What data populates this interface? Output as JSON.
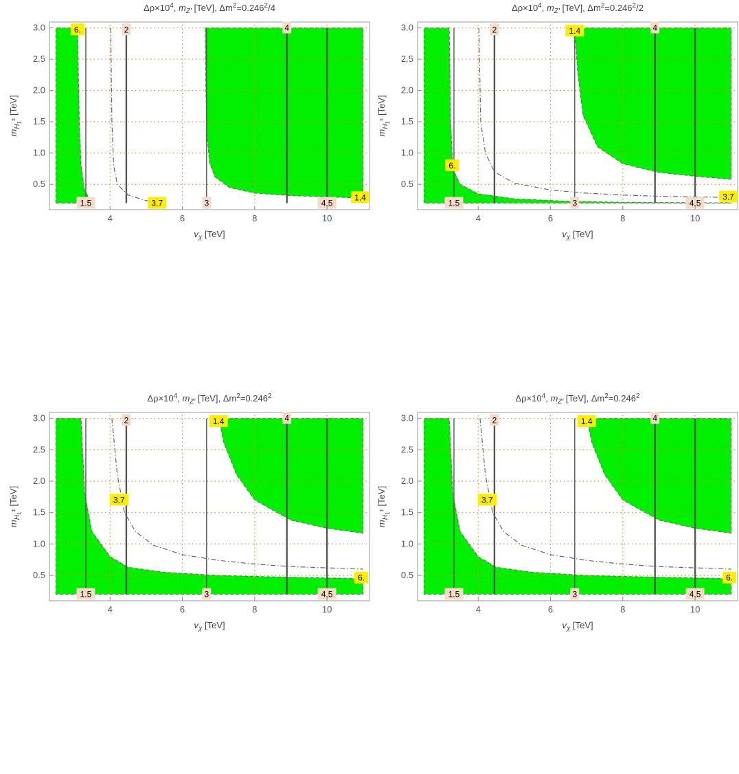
{
  "chart_data": [
    {
      "type": "contour",
      "title": "Δρ×10⁴, m_Z′ [TeV], Δm²=0.246²/4",
      "title_parts": {
        "a": "Δρ×10",
        "a_sup": "4",
        "b": ", ",
        "b_ital": "m",
        "b_sub": "Z′",
        "c": " [TeV], Δm",
        "c_sup": "2",
        "d": "=0.246",
        "d_sup": "2",
        "e": "/4"
      },
      "xlabel": "v_χ [TeV]",
      "ylabel": "m_H1± [TeV]",
      "xlim": [
        2.4,
        11.1
      ],
      "ylim": [
        0.14,
        3.05
      ],
      "xticks": [
        "4",
        "6",
        "8",
        "10"
      ],
      "yticks": [
        "0.5",
        "1.0",
        "1.5",
        "2.0",
        "2.5",
        "3.0"
      ],
      "vertical_contours": [
        {
          "x": 3.33,
          "label": "1.5",
          "y0": 0.2,
          "y1": 3.0,
          "label_y": 0.2
        },
        {
          "x": 4.45,
          "label": "2",
          "y0": 0.2,
          "y1": 3.0,
          "label_y": 2.97
        },
        {
          "x": 6.67,
          "label": "3",
          "y0": 0.2,
          "y1": 3.0,
          "label_y": 0.2
        },
        {
          "x": 8.89,
          "label": "4",
          "y0": 0.2,
          "y1": 3.0,
          "label_y": 3.0
        },
        {
          "x": 10.0,
          "label": "4.5",
          "y0": 0.2,
          "y1": 3.0,
          "label_y": 0.2
        }
      ],
      "green_regions": [
        {
          "points": [
            [
              2.5,
              0.2
            ],
            [
              2.5,
              3.0
            ],
            [
              3.1,
              3.0
            ],
            [
              3.15,
              1.5
            ],
            [
              3.2,
              0.8
            ],
            [
              3.3,
              0.4
            ],
            [
              3.5,
              0.2
            ]
          ]
        },
        {
          "points": [
            [
              6.63,
              3.0
            ],
            [
              11.0,
              3.0
            ],
            [
              11.0,
              0.28
            ],
            [
              10.0,
              0.3
            ],
            [
              9.0,
              0.32
            ],
            [
              8.0,
              0.36
            ],
            [
              7.3,
              0.45
            ],
            [
              6.9,
              0.62
            ],
            [
              6.75,
              0.85
            ],
            [
              6.68,
              1.3
            ],
            [
              6.65,
              2.0
            ]
          ]
        }
      ],
      "dashdot_curves": [
        {
          "label": "3.7",
          "label_x": 5.3,
          "label_y": 0.2,
          "points": [
            [
              4.02,
              3.0
            ],
            [
              4.05,
              1.5
            ],
            [
              4.1,
              0.8
            ],
            [
              4.2,
              0.5
            ],
            [
              4.5,
              0.33
            ],
            [
              5.0,
              0.24
            ],
            [
              5.5,
              0.2
            ]
          ]
        }
      ],
      "boundary_labels": [
        {
          "text": "6.",
          "x": 3.1,
          "y": 2.97
        },
        {
          "text": "1.4",
          "x": 10.95,
          "y": 0.29
        }
      ]
    },
    {
      "type": "contour",
      "title": "Δρ×10⁴, m_Z′ [TeV], Δm²=0.246²/2",
      "title_parts": {
        "a": "Δρ×10",
        "a_sup": "4",
        "b": ", ",
        "b_ital": "m",
        "b_sub": "Z′",
        "c": " [TeV], Δm",
        "c_sup": "2",
        "d": "=0.246",
        "d_sup": "2",
        "e": "/2"
      },
      "xlabel": "v_χ [TeV]",
      "ylabel": "m_H1± [TeV]",
      "xlim": [
        2.4,
        11.1
      ],
      "ylim": [
        0.14,
        3.05
      ],
      "xticks": [
        "4",
        "6",
        "8",
        "10"
      ],
      "yticks": [
        "0.5",
        "1.0",
        "1.5",
        "2.0",
        "2.5",
        "3.0"
      ],
      "vertical_contours": [
        {
          "x": 3.33,
          "label": "1.5",
          "y0": 0.2,
          "y1": 3.0,
          "label_y": 0.2
        },
        {
          "x": 4.45,
          "label": "2",
          "y0": 0.2,
          "y1": 3.0,
          "label_y": 2.97
        },
        {
          "x": 6.67,
          "label": "3",
          "y0": 0.2,
          "y1": 3.0,
          "label_y": 0.2
        },
        {
          "x": 8.89,
          "label": "4",
          "y0": 0.2,
          "y1": 3.0,
          "label_y": 3.0
        },
        {
          "x": 10.0,
          "label": "4.5",
          "y0": 0.2,
          "y1": 3.0,
          "label_y": 0.2
        }
      ],
      "green_regions": [
        {
          "points": [
            [
              2.5,
              0.2
            ],
            [
              2.5,
              3.0
            ],
            [
              3.2,
              3.0
            ],
            [
              3.24,
              1.5
            ],
            [
              3.3,
              0.75
            ],
            [
              3.5,
              0.5
            ],
            [
              4.0,
              0.35
            ],
            [
              5.0,
              0.27
            ],
            [
              6.5,
              0.23
            ],
            [
              8.0,
              0.215
            ],
            [
              11.0,
              0.205
            ],
            [
              11.0,
              0.2
            ]
          ]
        },
        {
          "points": [
            [
              6.67,
              3.0
            ],
            [
              11.0,
              3.0
            ],
            [
              11.0,
              0.58
            ],
            [
              10.0,
              0.63
            ],
            [
              9.0,
              0.69
            ],
            [
              8.0,
              0.83
            ],
            [
              7.3,
              1.1
            ],
            [
              6.9,
              1.6
            ],
            [
              6.75,
              2.3
            ],
            [
              6.68,
              2.9
            ]
          ]
        }
      ],
      "dashdot_curves": [
        {
          "label": "3.7",
          "label_x": 10.95,
          "label_y": 0.3,
          "points": [
            [
              4.02,
              3.0
            ],
            [
              4.07,
              1.5
            ],
            [
              4.2,
              1.0
            ],
            [
              4.45,
              0.7
            ],
            [
              5.0,
              0.52
            ],
            [
              6.0,
              0.41
            ],
            [
              7.0,
              0.36
            ],
            [
              8.0,
              0.33
            ],
            [
              9.0,
              0.31
            ],
            [
              10.0,
              0.3
            ],
            [
              11.0,
              0.29
            ]
          ]
        }
      ],
      "boundary_labels": [
        {
          "text": "1.4",
          "x": 6.67,
          "y": 2.95
        },
        {
          "text": "6.",
          "x": 3.28,
          "y": 0.8
        }
      ]
    },
    {
      "type": "contour",
      "title": "Δρ×10⁴, m_Z′ [TeV], Δm²=0.246²",
      "title_parts": {
        "a": "Δρ×10",
        "a_sup": "4",
        "b": ", ",
        "b_ital": "m",
        "b_sub": "Z′",
        "c": " [TeV], Δm",
        "c_sup": "2",
        "d": "=0.246",
        "d_sup": "2",
        "e": ""
      },
      "xlabel": "v_χ [TeV]",
      "ylabel": "m_H1± [TeV]",
      "xlim": [
        2.4,
        11.1
      ],
      "ylim": [
        0.14,
        3.05
      ],
      "xticks": [
        "4",
        "6",
        "8",
        "10"
      ],
      "yticks": [
        "0.5",
        "1.0",
        "1.5",
        "2.0",
        "2.5",
        "3.0"
      ],
      "vertical_contours": [
        {
          "x": 3.33,
          "label": "1.5",
          "y0": 0.2,
          "y1": 3.0,
          "label_y": 0.2
        },
        {
          "x": 4.45,
          "label": "2",
          "y0": 0.2,
          "y1": 3.0,
          "label_y": 2.97
        },
        {
          "x": 6.67,
          "label": "3",
          "y0": 0.2,
          "y1": 3.0,
          "label_y": 0.2
        },
        {
          "x": 8.89,
          "label": "4",
          "y0": 0.2,
          "y1": 3.0,
          "label_y": 3.0
        },
        {
          "x": 10.0,
          "label": "4.5",
          "y0": 0.2,
          "y1": 3.0,
          "label_y": 0.2
        }
      ],
      "green_regions": [
        {
          "points": [
            [
              2.5,
              0.2
            ],
            [
              2.5,
              3.0
            ],
            [
              3.2,
              3.0
            ],
            [
              3.3,
              1.8
            ],
            [
              3.5,
              1.2
            ],
            [
              4.0,
              0.8
            ],
            [
              4.5,
              0.63
            ],
            [
              5.5,
              0.55
            ],
            [
              7.0,
              0.5
            ],
            [
              9.0,
              0.47
            ],
            [
              11.0,
              0.45
            ],
            [
              11.0,
              0.2
            ]
          ]
        },
        {
          "points": [
            [
              7.0,
              3.0
            ],
            [
              11.0,
              3.0
            ],
            [
              11.0,
              1.17
            ],
            [
              10.0,
              1.25
            ],
            [
              9.0,
              1.38
            ],
            [
              8.0,
              1.7
            ],
            [
              7.5,
              2.1
            ],
            [
              7.15,
              2.6
            ]
          ]
        }
      ],
      "dashdot_curves": [
        {
          "label": "3.7",
          "label_x": 4.25,
          "label_y": 1.7,
          "points": [
            [
              4.05,
              3.0
            ],
            [
              4.2,
              2.1
            ],
            [
              4.4,
              1.5
            ],
            [
              4.7,
              1.2
            ],
            [
              5.2,
              0.98
            ],
            [
              6.0,
              0.83
            ],
            [
              7.0,
              0.74
            ],
            [
              8.0,
              0.68
            ],
            [
              9.0,
              0.64
            ],
            [
              10.0,
              0.62
            ],
            [
              11.0,
              0.6
            ]
          ]
        }
      ],
      "boundary_labels": [
        {
          "text": "1.4",
          "x": 7.0,
          "y": 2.95
        },
        {
          "text": "6.",
          "x": 10.95,
          "y": 0.46
        }
      ]
    },
    {
      "type": "contour",
      "title": "Δρ×10⁴, m_Z′ [TeV], Δm²=0.246²",
      "title_parts": {
        "a": "Δρ×10",
        "a_sup": "4",
        "b": ", ",
        "b_ital": "m",
        "b_sub": "Z′",
        "c": " [TeV], Δm",
        "c_sup": "2",
        "d": "=0.246",
        "d_sup": "2",
        "e": ""
      },
      "xlabel": "v_χ [TeV]",
      "ylabel": "m_H1± [TeV]",
      "xlim": [
        2.4,
        11.1
      ],
      "ylim": [
        0.14,
        3.05
      ],
      "xticks": [
        "4",
        "6",
        "8",
        "10"
      ],
      "yticks": [
        "0.5",
        "1.0",
        "1.5",
        "2.0",
        "2.5",
        "3.0"
      ],
      "vertical_contours": [
        {
          "x": 3.33,
          "label": "1.5",
          "y0": 0.2,
          "y1": 3.0,
          "label_y": 0.2
        },
        {
          "x": 4.45,
          "label": "2",
          "y0": 0.2,
          "y1": 3.0,
          "label_y": 2.97
        },
        {
          "x": 6.67,
          "label": "3",
          "y0": 0.2,
          "y1": 3.0,
          "label_y": 0.2
        },
        {
          "x": 8.89,
          "label": "4",
          "y0": 0.2,
          "y1": 3.0,
          "label_y": 3.0
        },
        {
          "x": 10.0,
          "label": "4.5",
          "y0": 0.2,
          "y1": 3.0,
          "label_y": 0.2
        }
      ],
      "green_regions": [
        {
          "points": [
            [
              2.5,
              0.2
            ],
            [
              2.5,
              3.0
            ],
            [
              3.2,
              3.0
            ],
            [
              3.3,
              1.8
            ],
            [
              3.5,
              1.2
            ],
            [
              4.0,
              0.8
            ],
            [
              4.5,
              0.63
            ],
            [
              5.5,
              0.55
            ],
            [
              7.0,
              0.5
            ],
            [
              9.0,
              0.47
            ],
            [
              11.0,
              0.45
            ],
            [
              11.0,
              0.2
            ]
          ]
        },
        {
          "points": [
            [
              7.0,
              3.0
            ],
            [
              11.0,
              3.0
            ],
            [
              11.0,
              1.17
            ],
            [
              10.0,
              1.25
            ],
            [
              9.0,
              1.38
            ],
            [
              8.0,
              1.7
            ],
            [
              7.5,
              2.1
            ],
            [
              7.15,
              2.6
            ]
          ]
        }
      ],
      "dashdot_curves": [
        {
          "label": "3.7",
          "label_x": 4.25,
          "label_y": 1.7,
          "points": [
            [
              4.05,
              3.0
            ],
            [
              4.2,
              2.1
            ],
            [
              4.4,
              1.5
            ],
            [
              4.7,
              1.2
            ],
            [
              5.2,
              0.98
            ],
            [
              6.0,
              0.83
            ],
            [
              7.0,
              0.74
            ],
            [
              8.0,
              0.68
            ],
            [
              9.0,
              0.64
            ],
            [
              10.0,
              0.62
            ],
            [
              11.0,
              0.6
            ]
          ]
        }
      ],
      "boundary_labels": [
        {
          "text": "1.4",
          "x": 7.0,
          "y": 2.95
        },
        {
          "text": "6.",
          "x": 10.95,
          "y": 0.46
        }
      ]
    }
  ],
  "style": {
    "green": "#00ee00",
    "grid_color": "#e08a2e",
    "contour_color": "#555555",
    "label_bg_light": "#f6dcc8",
    "label_bg_yellow": "#ffee00",
    "frame_color": "#999999"
  }
}
